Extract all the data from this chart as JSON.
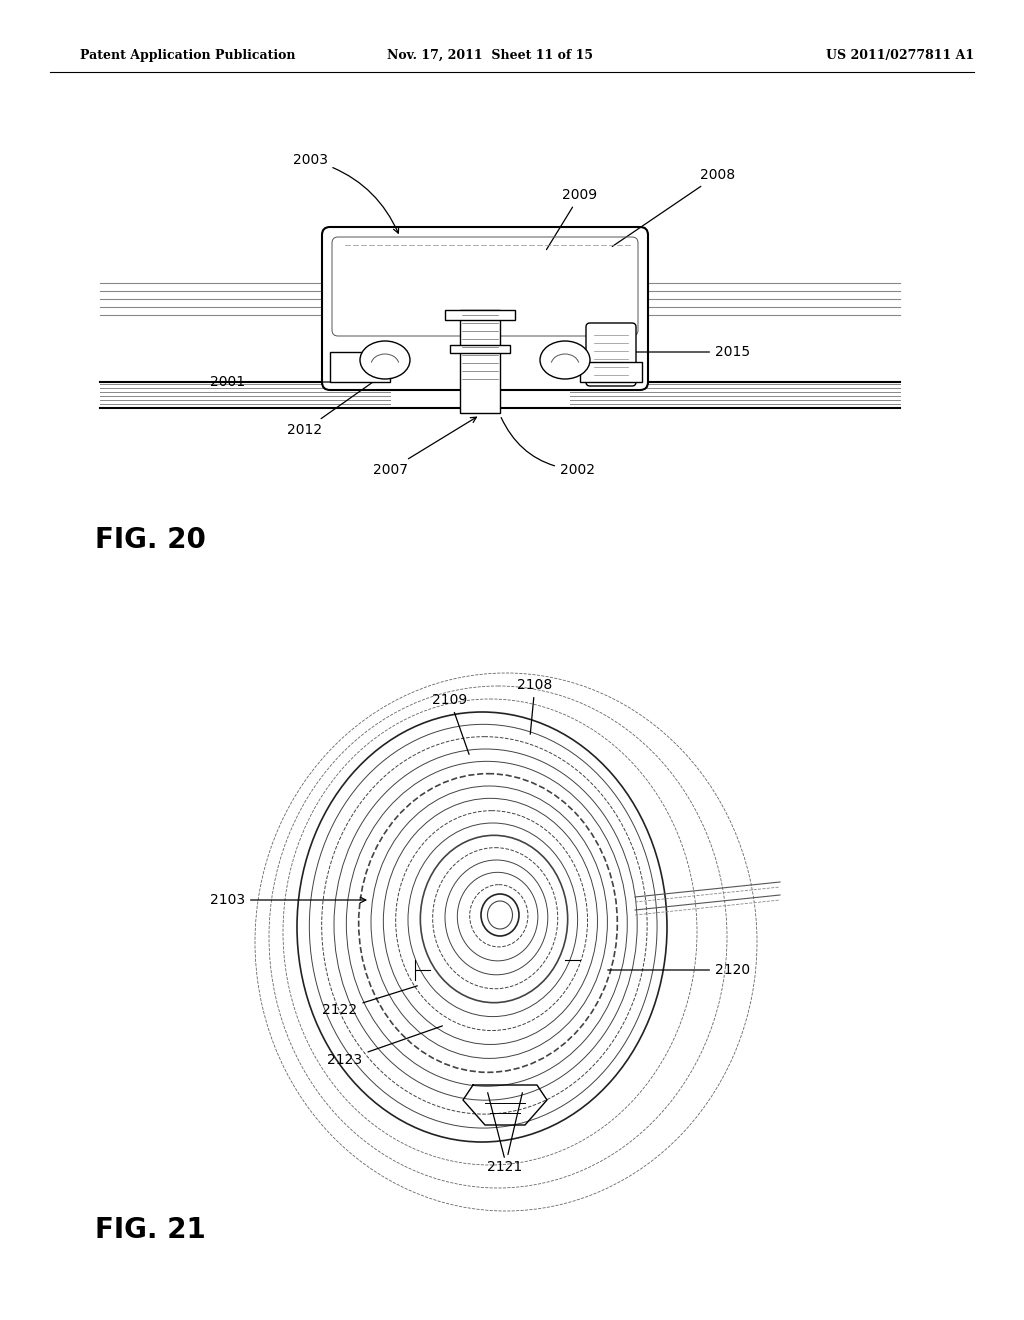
{
  "background_color": "#ffffff",
  "header_left": "Patent Application Publication",
  "header_mid": "Nov. 17, 2011  Sheet 11 of 15",
  "header_right": "US 2011/0277811 A1",
  "fig20_label": "FIG. 20",
  "fig21_label": "FIG. 21",
  "font_size_annot": 10,
  "font_size_fig": 20
}
